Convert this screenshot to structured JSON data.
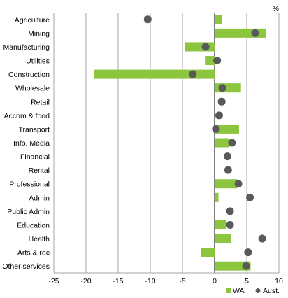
{
  "chart_data": {
    "type": "bar",
    "orientation": "horizontal",
    "unit_label": "%",
    "categories": [
      "Agriculture",
      "Mining",
      "Manufacturing",
      "Utilities",
      "Construction",
      "Wholesale",
      "Retail",
      "Accom & food",
      "Transport",
      "Info. Media",
      "Financial",
      "Rental",
      "Professional",
      "Admin",
      "Public Admin",
      "Education",
      "Health",
      "Arts & rec",
      "Other services"
    ],
    "series": [
      {
        "name": "WA",
        "kind": "bar",
        "color": "#8cc63f",
        "values": [
          1.1,
          8.0,
          -4.6,
          -1.5,
          -18.7,
          4.1,
          0,
          0,
          3.8,
          2.3,
          0,
          0,
          3.5,
          0.6,
          0,
          1.8,
          2.6,
          -2.1,
          5.6
        ]
      },
      {
        "name": "Aust.",
        "kind": "dot",
        "color": "#595959",
        "values": [
          -10.4,
          6.3,
          -1.4,
          0.4,
          -3.4,
          1.2,
          1.1,
          0.7,
          0.2,
          2.7,
          2.0,
          2.1,
          3.7,
          5.5,
          2.4,
          2.4,
          7.4,
          5.2,
          4.9
        ]
      }
    ],
    "xlim": [
      -25,
      10
    ],
    "xticks": [
      -25,
      -20,
      -15,
      -10,
      -5,
      0,
      5,
      10
    ],
    "grid": "vertical",
    "legend": "bottom-right"
  }
}
